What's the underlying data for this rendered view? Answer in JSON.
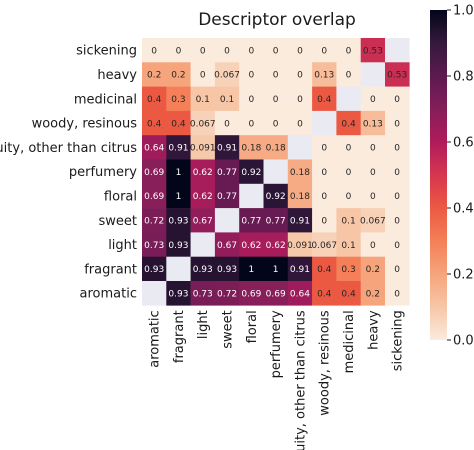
{
  "chart_data": {
    "type": "heatmap",
    "title": "Descriptor overlap",
    "rows": [
      "sickening",
      "heavy",
      "medicinal",
      "woody, resinous",
      "fruity, other than citrus",
      "perfumery",
      "floral",
      "sweet",
      "light",
      "fragrant",
      "aromatic"
    ],
    "cols": [
      "aromatic",
      "fragrant",
      "light",
      "sweet",
      "floral",
      "perfumery",
      "fruity, other than citrus",
      "woody, resinous",
      "medicinal",
      "heavy",
      "sickening"
    ],
    "values": [
      [
        0,
        0,
        0,
        0,
        0,
        0,
        0,
        0,
        0,
        0.53,
        null
      ],
      [
        0.2,
        0.2,
        0,
        0.067,
        0,
        0,
        0,
        0.13,
        0,
        null,
        0.53
      ],
      [
        0.4,
        0.3,
        0.1,
        0.1,
        0,
        0,
        0,
        0.4,
        null,
        0,
        0
      ],
      [
        0.4,
        0.4,
        0.067,
        0,
        0,
        0,
        0,
        null,
        0.4,
        0.13,
        0
      ],
      [
        0.64,
        0.91,
        0.091,
        0.91,
        0.18,
        0.18,
        null,
        0,
        0,
        0,
        0
      ],
      [
        0.69,
        1,
        0.62,
        0.77,
        0.92,
        null,
        0.18,
        0,
        0,
        0,
        0
      ],
      [
        0.69,
        1,
        0.62,
        0.77,
        null,
        0.92,
        0.18,
        0,
        0,
        0,
        0
      ],
      [
        0.72,
        0.93,
        0.67,
        null,
        0.77,
        0.77,
        0.91,
        0,
        0.1,
        0.067,
        0
      ],
      [
        0.73,
        0.93,
        null,
        0.67,
        0.62,
        0.62,
        0.091,
        0.067,
        0.1,
        0,
        0
      ],
      [
        0.93,
        null,
        0.93,
        0.93,
        1,
        1,
        0.91,
        0.4,
        0.3,
        0.2,
        0
      ],
      [
        null,
        0.93,
        0.73,
        0.72,
        0.69,
        0.69,
        0.64,
        0.4,
        0.4,
        0.2,
        0
      ]
    ],
    "colorbar": {
      "min": 0.0,
      "max": 1.0,
      "ticks": [
        "0.0",
        "0.2",
        "0.4",
        "0.6",
        "0.8",
        "1.0"
      ],
      "colormap": "rocket_r"
    },
    "grid": false,
    "legend": "colorbar-right"
  }
}
